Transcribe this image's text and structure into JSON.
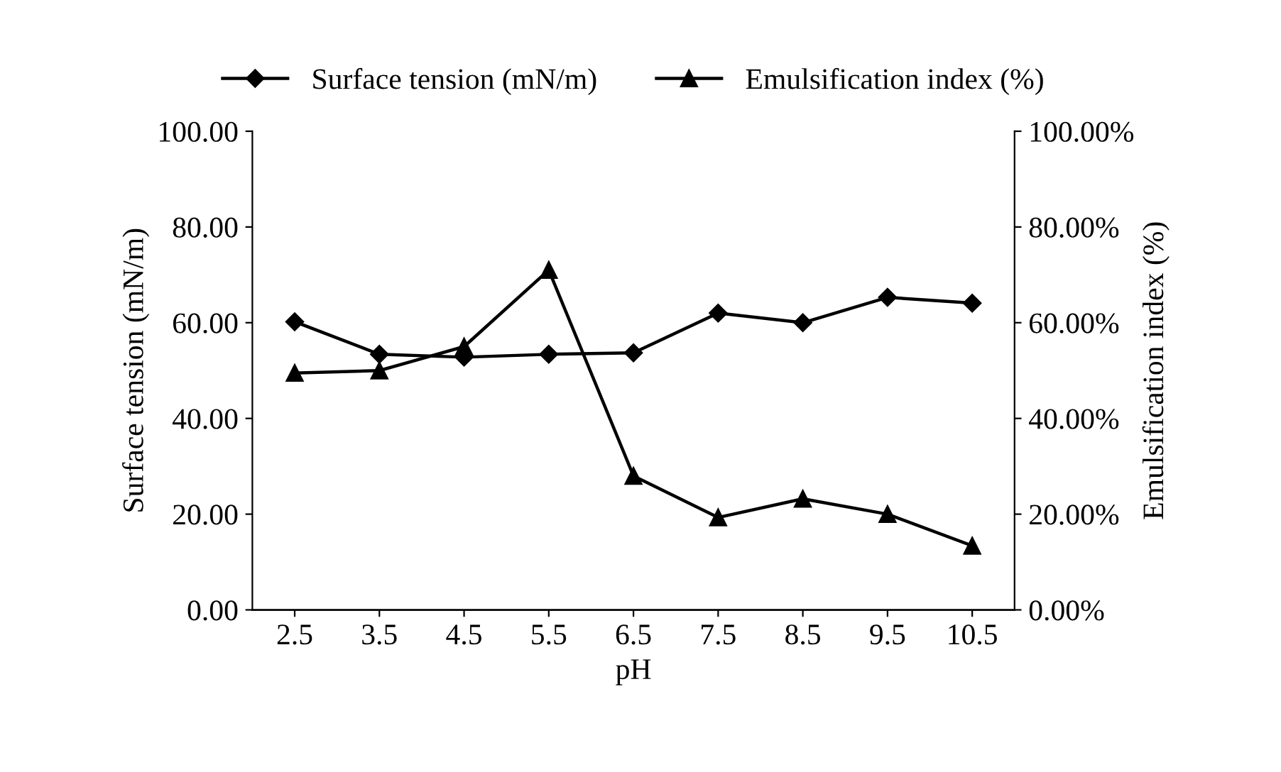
{
  "chart_data": {
    "type": "line",
    "xlabel": "pH",
    "ylabel": "Surface tension (mN/m)",
    "y2label": "Emulsification index (%)",
    "categories": [
      "2.5",
      "3.5",
      "4.5",
      "5.5",
      "6.5",
      "7.5",
      "8.5",
      "9.5",
      "10.5"
    ],
    "series": [
      {
        "name": "Surface tension (mN/m)",
        "color": "#000000",
        "marker": "diamond",
        "values": [
          60.2,
          53.4,
          52.8,
          53.4,
          53.7,
          62.0,
          60.0,
          65.3,
          64.1
        ]
      },
      {
        "name": "Emulsification index (%)",
        "color": "#000000",
        "marker": "triangle",
        "axis": "y2",
        "values": [
          49.5,
          50.0,
          55.0,
          71.0,
          28.0,
          19.3,
          23.2,
          20.0,
          13.4
        ]
      }
    ],
    "ylim": [
      0,
      100
    ],
    "yticks": [
      {
        "value": 0,
        "label": "0.00"
      },
      {
        "value": 20,
        "label": "20.00"
      },
      {
        "value": 40,
        "label": "40.00"
      },
      {
        "value": 60,
        "label": "60.00"
      },
      {
        "value": 80,
        "label": "80.00"
      },
      {
        "value": 100,
        "label": "100.00"
      }
    ],
    "y2lim": [
      0,
      100
    ],
    "y2ticks": [
      {
        "value": 0,
        "label": "0.00%"
      },
      {
        "value": 20,
        "label": "20.00%"
      },
      {
        "value": 40,
        "label": "40.00%"
      },
      {
        "value": 60,
        "label": "60.00%"
      },
      {
        "value": 80,
        "label": "80.00%"
      },
      {
        "value": 100,
        "label": "100.00%"
      }
    ],
    "grid": false,
    "legend": "top",
    "line_style": "solid"
  }
}
